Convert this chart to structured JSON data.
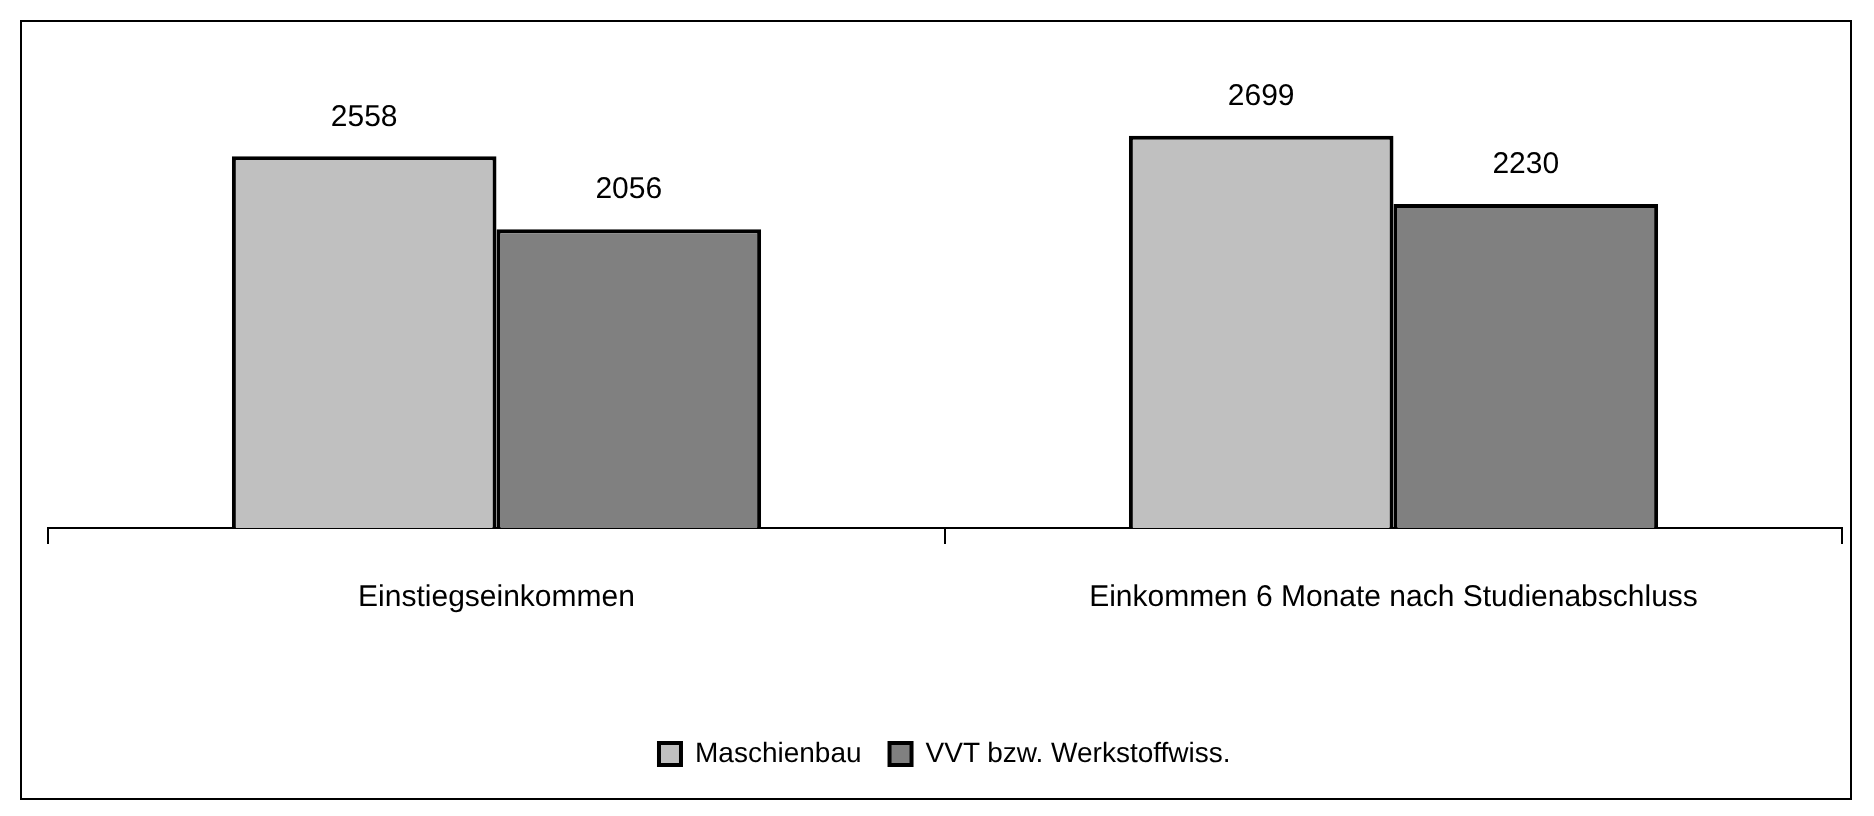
{
  "chart_data": {
    "type": "bar",
    "categories": [
      "Einstiegseinkommen",
      "Einkommen 6 Monate nach Studienabschluss"
    ],
    "series": [
      {
        "name": "Maschienbau",
        "color": "#c0c0c0",
        "values": [
          2558,
          2699
        ]
      },
      {
        "name": "VVT bzw. Werkstoffwiss.",
        "color": "#808080",
        "values": [
          2056,
          2230
        ]
      }
    ],
    "tick_labels": "x",
    "data_labels": true,
    "grid": false,
    "legend": "bottom"
  }
}
